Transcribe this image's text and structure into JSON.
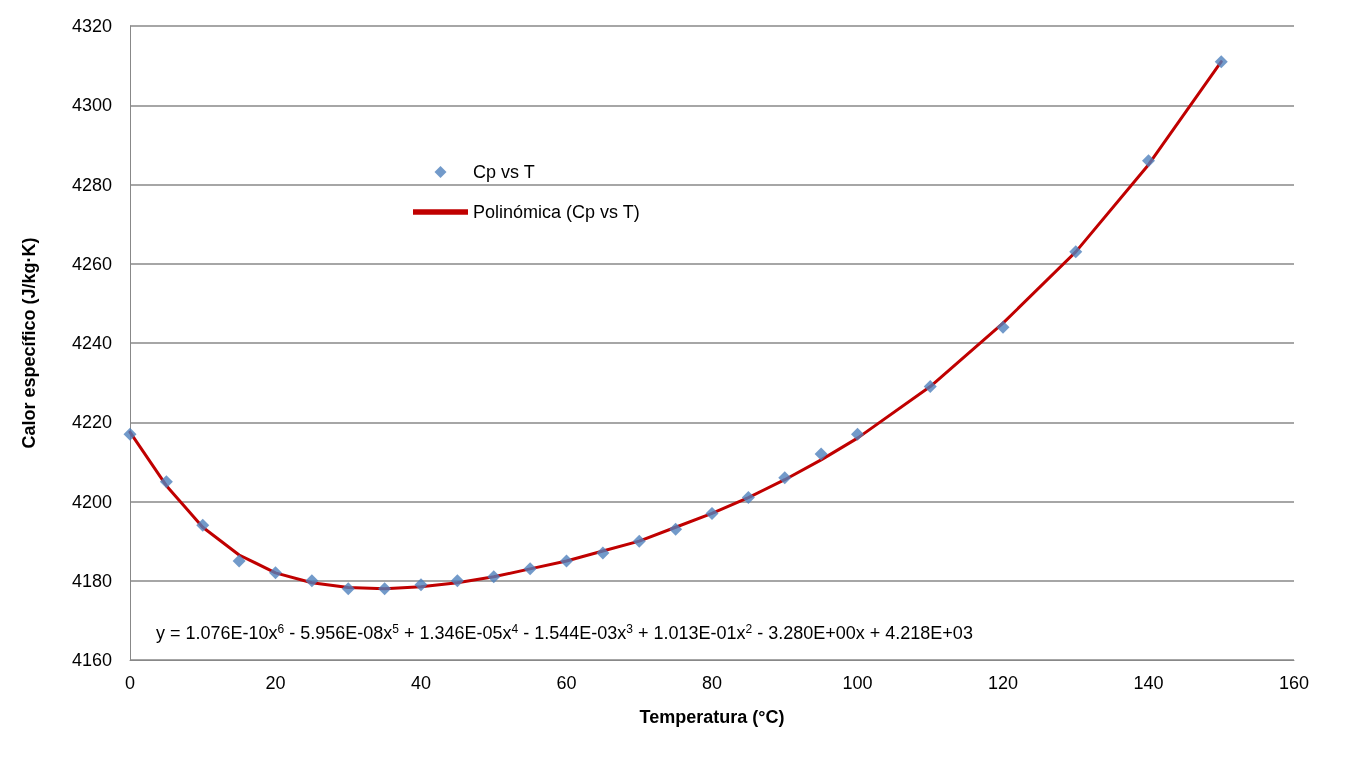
{
  "chart_data": {
    "type": "scatter",
    "xlabel": "Temperatura (°C)",
    "ylabel": "Calor específico (J/kg·K)",
    "series": [
      {
        "name": "Cp vs T",
        "color": "#4f81bd",
        "marker": "diamond",
        "x": [
          0,
          5,
          10,
          15,
          20,
          25,
          30,
          35,
          40,
          45,
          50,
          55,
          60,
          65,
          70,
          75,
          80,
          85,
          90,
          95,
          100,
          110,
          120,
          130,
          140,
          150
        ],
        "values": [
          4217,
          4205,
          4194,
          4185,
          4182,
          4180,
          4178,
          4178,
          4179,
          4180,
          4181,
          4183,
          4185,
          4187,
          4190,
          4193,
          4197,
          4201,
          4206,
          4212,
          4217,
          4229,
          4244,
          4263,
          4286,
          4311
        ]
      },
      {
        "name": "Polinómica (Cp vs T)",
        "type": "line",
        "color": "#c00000",
        "marker": "none",
        "line_style": "solid",
        "x": [
          0,
          5,
          10,
          15,
          20,
          25,
          30,
          35,
          40,
          45,
          50,
          55,
          60,
          65,
          70,
          75,
          80,
          85,
          90,
          95,
          100,
          110,
          120,
          130,
          140,
          150
        ],
        "values": [
          4217.5,
          4204,
          4193.5,
          4186.5,
          4182,
          4179.5,
          4178.3,
          4178,
          4178.5,
          4179.5,
          4181,
          4183,
          4185,
          4187.5,
          4190,
          4193.5,
          4197,
          4201,
          4205.5,
          4210.5,
          4216,
          4229,
          4245,
          4263,
          4285,
          4311
        ]
      }
    ],
    "xlim": [
      0,
      160
    ],
    "xticks": [
      0,
      20,
      40,
      60,
      80,
      100,
      120,
      140,
      160
    ],
    "ylim": [
      4160,
      4320
    ],
    "yticks": [
      4160,
      4180,
      4200,
      4220,
      4240,
      4260,
      4280,
      4300,
      4320
    ],
    "grid": "y",
    "legend": "top left",
    "annotations": [
      "y = 1.076E-10x$^{6}$ - 5.956E-08x$^{5}$ + 1.346E-05x$^{4}$ - 1.544E-03x$^{3}$ + 1.013E-01x$^{2}$ - 3.280E+00x + 4.218E+03"
    ]
  }
}
